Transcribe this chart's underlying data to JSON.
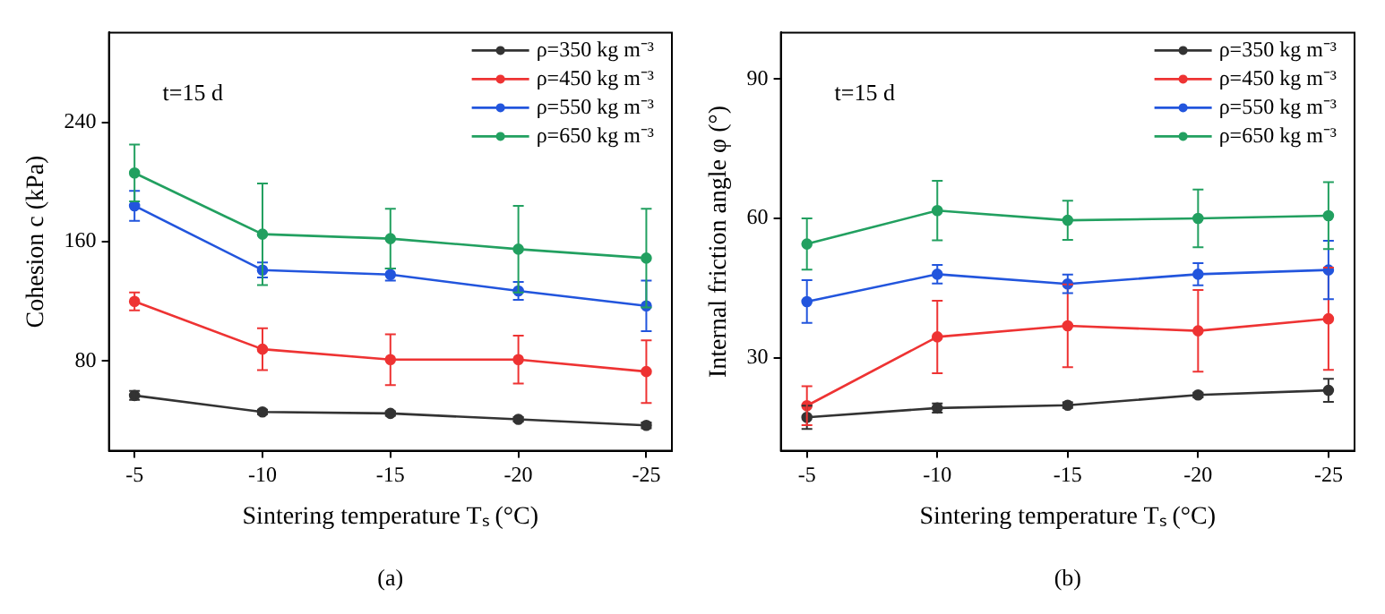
{
  "chart_data": [
    {
      "type": "line",
      "ylabel": "Cohesion c (kPa)",
      "xlabel": "Sintering temperature Tₛ (°C)",
      "x": [
        -5,
        -10,
        -15,
        -20,
        -25
      ],
      "xlim": [
        -4,
        -26
      ],
      "xticks": [
        -5,
        -10,
        -15,
        -20,
        -25
      ],
      "ylim": [
        20,
        300
      ],
      "yticks": [
        80,
        160,
        240
      ],
      "grid": false,
      "legend": "top right",
      "marker": "circle",
      "annotations": [
        "t=15 d",
        "(a)"
      ],
      "series": [
        {
          "name": "ρ=350 kg m⁻³",
          "color": "#333333",
          "values": [
            57,
            46,
            45,
            41,
            37
          ],
          "errors": [
            3,
            1.5,
            1.5,
            1.5,
            2
          ]
        },
        {
          "name": "ρ=450 kg m⁻³",
          "color": "#ee3333",
          "values": [
            120,
            88,
            81,
            81,
            73
          ],
          "errors": [
            6,
            14,
            17,
            16,
            21
          ]
        },
        {
          "name": "ρ=550 kg m⁻³",
          "color": "#2255dd",
          "values": [
            184,
            141,
            138,
            127,
            117
          ],
          "errors": [
            10,
            5,
            4,
            6,
            17
          ]
        },
        {
          "name": "ρ=650 kg m⁻³",
          "color": "#22a060",
          "values": [
            206,
            165,
            162,
            155,
            149
          ],
          "errors": [
            19,
            34,
            20,
            29,
            33
          ]
        }
      ]
    },
    {
      "type": "line",
      "ylabel": "Internal friction angle φ (°)",
      "xlabel": "Sintering temperature Tₛ (°C)",
      "x": [
        -5,
        -10,
        -15,
        -20,
        -25
      ],
      "xlim": [
        -4,
        -26
      ],
      "xticks": [
        -5,
        -10,
        -15,
        -20,
        -25
      ],
      "ylim": [
        10,
        100
      ],
      "yticks": [
        30,
        60,
        90
      ],
      "grid": false,
      "legend": "top right",
      "marker": "circle",
      "annotations": [
        "t=15 d",
        "(b)"
      ],
      "series": [
        {
          "name": "ρ=350 kg m⁻³",
          "color": "#333333",
          "values": [
            17.2,
            19.2,
            19.8,
            22,
            23
          ],
          "errors": [
            2.5,
            1,
            0.6,
            0.5,
            2.5
          ]
        },
        {
          "name": "ρ=450 kg m⁻³",
          "color": "#ee3333",
          "values": [
            19.7,
            34.5,
            36.9,
            35.8,
            38.4
          ],
          "errors": [
            4.2,
            7.8,
            8.9,
            8.8,
            11
          ]
        },
        {
          "name": "ρ=550 kg m⁻³",
          "color": "#2255dd",
          "values": [
            42.1,
            48,
            45.9,
            48,
            48.9
          ],
          "errors": [
            4.6,
            2,
            2,
            2.4,
            6.3
          ]
        },
        {
          "name": "ρ=650 kg m⁻³",
          "color": "#22a060",
          "values": [
            54.5,
            61.7,
            59.6,
            60,
            60.6
          ],
          "errors": [
            5.5,
            6.4,
            4.2,
            6.2,
            7.2
          ]
        }
      ]
    }
  ]
}
